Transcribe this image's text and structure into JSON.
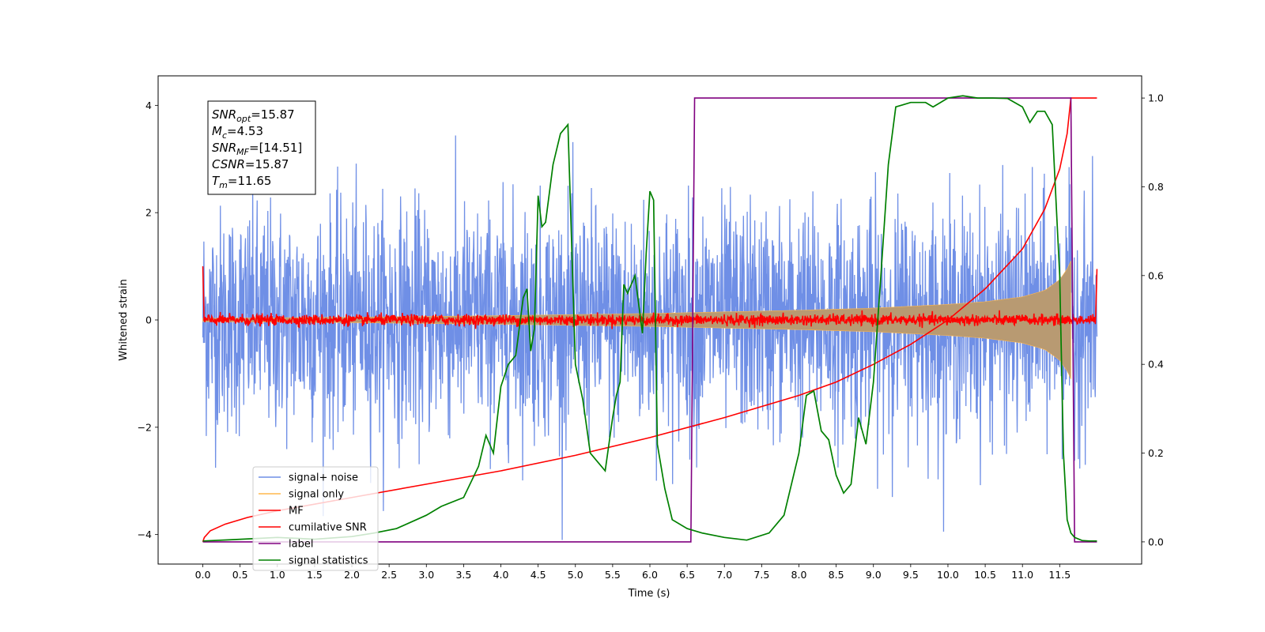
{
  "chart_data": {
    "type": "line",
    "xlabel": "Time (s)",
    "ylabel": "Whitened strain",
    "xlim": [
      -0.6,
      12.6
    ],
    "ylim": [
      -4.55,
      4.55
    ],
    "y2lim": [
      -0.05,
      1.05
    ],
    "x_ticks": [
      0.0,
      0.5,
      1.0,
      1.5,
      2.0,
      2.5,
      3.0,
      3.5,
      4.0,
      4.5,
      5.0,
      5.5,
      6.0,
      6.5,
      7.0,
      7.5,
      8.0,
      8.5,
      9.0,
      9.5,
      10.0,
      10.5,
      11.0,
      11.5
    ],
    "x_tick_labels": [
      "0.0",
      "0.5",
      "1.0",
      "1.5",
      "2.0",
      "2.5",
      "3.0",
      "3.5",
      "4.0",
      "4.5",
      "5.0",
      "5.5",
      "6.0",
      "6.5",
      "7.0",
      "7.5",
      "8.0",
      "8.5",
      "9.0",
      "9.5",
      "10.0",
      "10.5",
      "11.0",
      "11.5"
    ],
    "y_ticks": [
      4,
      2,
      0,
      -2,
      -4
    ],
    "y_tick_labels": [
      "4",
      "2",
      "0",
      "−2",
      "−4"
    ],
    "y2_ticks": [
      1.0,
      0.8,
      0.6,
      0.4,
      0.2,
      0.0
    ],
    "y2_tick_labels": [
      "1.0",
      "0.8",
      "0.6",
      "0.4",
      "0.2",
      "0.0"
    ],
    "grid": false,
    "legend_position": "lower-left",
    "info_box": [
      {
        "main": "SNR",
        "sub": "opt",
        "rest": "=15.87"
      },
      {
        "main": "M",
        "sub": "c",
        "rest": "=4.53"
      },
      {
        "main": "SNR",
        "sub": "MF",
        "rest": "=[14.51]"
      },
      {
        "main": "CSNR",
        "sub": "",
        "rest": "=15.87"
      },
      {
        "main": "T",
        "sub": "m",
        "rest": "=11.65"
      }
    ],
    "series": [
      {
        "name": "signal+ noise",
        "color": "#6f8fe6",
        "axis": "left",
        "kind": "noise",
        "x_range": [
          0.0,
          12.0
        ],
        "noise_std": 1.0,
        "noise_max": 4.1,
        "noise_min": -4.1
      },
      {
        "name": "signal only",
        "color": "#ffb74d",
        "fill_color": "#b89a72",
        "axis": "left",
        "kind": "envelope",
        "x_range": [
          0.0,
          11.65
        ],
        "envelope_x": [
          0.0,
          2.0,
          4.0,
          6.0,
          8.0,
          9.0,
          10.0,
          10.5,
          11.0,
          11.3,
          11.5,
          11.6,
          11.65
        ],
        "envelope_y": [
          0.03,
          0.05,
          0.08,
          0.12,
          0.18,
          0.22,
          0.29,
          0.34,
          0.43,
          0.55,
          0.75,
          0.95,
          1.1
        ]
      },
      {
        "name": "MF",
        "color": "#ff0000",
        "axis": "left",
        "kind": "mf",
        "x_range": [
          0.0,
          12.0
        ],
        "spike_start": 1.0,
        "spike_end": 0.95,
        "noise_std": 0.05
      },
      {
        "name": "cumilative SNR",
        "color": "#ff0000",
        "axis": "right",
        "x": [
          0.0,
          0.02,
          0.1,
          0.3,
          0.6,
          1.0,
          1.5,
          2.0,
          3.0,
          4.0,
          5.0,
          6.0,
          7.0,
          8.0,
          8.5,
          9.0,
          9.5,
          10.0,
          10.5,
          11.0,
          11.3,
          11.5,
          11.6,
          11.65,
          12.0
        ],
        "y": [
          0.0,
          0.01,
          0.025,
          0.04,
          0.055,
          0.07,
          0.085,
          0.1,
          0.13,
          0.16,
          0.195,
          0.235,
          0.28,
          0.33,
          0.36,
          0.4,
          0.445,
          0.5,
          0.57,
          0.66,
          0.75,
          0.84,
          0.92,
          1.0,
          1.0
        ]
      },
      {
        "name": "label",
        "color": "#800080",
        "axis": "right",
        "x": [
          0.0,
          6.55,
          6.6,
          11.65,
          11.7,
          12.0
        ],
        "y": [
          0.0,
          0.0,
          1.0,
          1.0,
          0.0,
          0.0
        ]
      },
      {
        "name": "signal statistics",
        "color": "#008000",
        "axis": "right",
        "x": [
          0.0,
          0.4,
          1.0,
          1.5,
          2.0,
          2.3,
          2.6,
          3.0,
          3.2,
          3.5,
          3.7,
          3.8,
          3.9,
          4.0,
          4.1,
          4.2,
          4.3,
          4.35,
          4.4,
          4.45,
          4.5,
          4.55,
          4.6,
          4.7,
          4.8,
          4.9,
          5.0,
          5.1,
          5.2,
          5.3,
          5.4,
          5.45,
          5.5,
          5.55,
          5.6,
          5.65,
          5.7,
          5.8,
          5.9,
          5.95,
          6.0,
          6.05,
          6.1,
          6.2,
          6.3,
          6.5,
          6.7,
          7.0,
          7.3,
          7.6,
          7.8,
          8.0,
          8.1,
          8.2,
          8.3,
          8.4,
          8.5,
          8.6,
          8.7,
          8.8,
          8.9,
          9.0,
          9.1,
          9.2,
          9.3,
          9.4,
          9.5,
          9.6,
          9.7,
          9.8,
          9.9,
          10.0,
          10.2,
          10.4,
          10.6,
          10.8,
          11.0,
          11.1,
          11.2,
          11.3,
          11.4,
          11.5,
          11.55,
          11.6,
          11.65,
          11.7,
          11.8,
          11.9,
          12.0
        ],
        "y": [
          0.002,
          0.005,
          0.01,
          0.006,
          0.012,
          0.02,
          0.03,
          0.06,
          0.08,
          0.1,
          0.17,
          0.24,
          0.2,
          0.35,
          0.4,
          0.42,
          0.55,
          0.57,
          0.43,
          0.48,
          0.78,
          0.71,
          0.72,
          0.85,
          0.92,
          0.94,
          0.4,
          0.32,
          0.2,
          0.18,
          0.16,
          0.22,
          0.28,
          0.33,
          0.36,
          0.58,
          0.56,
          0.6,
          0.47,
          0.65,
          0.79,
          0.77,
          0.22,
          0.12,
          0.05,
          0.03,
          0.02,
          0.01,
          0.004,
          0.02,
          0.06,
          0.2,
          0.33,
          0.34,
          0.25,
          0.23,
          0.15,
          0.11,
          0.13,
          0.28,
          0.22,
          0.36,
          0.6,
          0.85,
          0.98,
          0.985,
          0.99,
          0.99,
          0.99,
          0.98,
          0.99,
          1.0,
          1.005,
          1.0,
          1.0,
          0.999,
          0.98,
          0.945,
          0.97,
          0.97,
          0.94,
          0.6,
          0.2,
          0.05,
          0.02,
          0.01,
          0.003,
          0.002,
          0.002
        ]
      }
    ]
  }
}
